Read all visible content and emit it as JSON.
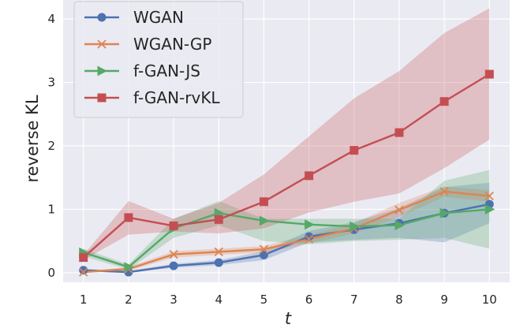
{
  "chart_data": {
    "type": "line",
    "title": "",
    "xlabel": "t",
    "ylabel": "reverse KL",
    "x": [
      1,
      2,
      3,
      4,
      5,
      6,
      7,
      8,
      9,
      10
    ],
    "xticks": [
      "1",
      "2",
      "3",
      "4",
      "5",
      "6",
      "7",
      "8",
      "9",
      "10"
    ],
    "yticks": [
      "0",
      "1",
      "2",
      "3",
      "4"
    ],
    "xlim": [
      0.55,
      10.45
    ],
    "ylim": [
      -0.15,
      4.3
    ],
    "grid": true,
    "legend_position": "top-left",
    "series": [
      {
        "name": "WGAN",
        "color": "#4c72b0",
        "marker": "circle",
        "values": [
          0.04,
          0.01,
          0.11,
          0.16,
          0.28,
          0.57,
          0.68,
          0.78,
          0.94,
          1.08
        ],
        "lower": [
          0.02,
          0.0,
          0.08,
          0.12,
          0.2,
          0.48,
          0.52,
          0.55,
          0.48,
          0.78
        ],
        "upper": [
          0.06,
          0.03,
          0.14,
          0.2,
          0.34,
          0.66,
          0.8,
          1.02,
          1.35,
          1.42
        ]
      },
      {
        "name": "WGAN-GP",
        "color": "#dd8452",
        "marker": "x",
        "values": [
          0.01,
          0.06,
          0.29,
          0.33,
          0.37,
          0.53,
          0.7,
          0.99,
          1.28,
          1.21
        ],
        "lower": [
          0.0,
          0.03,
          0.24,
          0.28,
          0.32,
          0.46,
          0.62,
          0.88,
          1.2,
          1.12
        ],
        "upper": [
          0.02,
          0.09,
          0.34,
          0.38,
          0.42,
          0.6,
          0.78,
          1.1,
          1.36,
          1.3
        ]
      },
      {
        "name": "f-GAN-JS",
        "color": "#55a868",
        "marker": "triangle-right",
        "values": [
          0.32,
          0.09,
          0.7,
          0.94,
          0.82,
          0.76,
          0.73,
          0.75,
          0.94,
          1.0
        ],
        "lower": [
          0.26,
          0.05,
          0.55,
          0.75,
          0.5,
          0.45,
          0.5,
          0.52,
          0.55,
          0.38
        ],
        "upper": [
          0.38,
          0.13,
          0.85,
          1.13,
          0.85,
          0.85,
          0.85,
          0.85,
          1.45,
          1.62
        ]
      },
      {
        "name": "f-GAN-rvKL",
        "color": "#c44e52",
        "marker": "square",
        "values": [
          0.24,
          0.87,
          0.74,
          0.84,
          1.12,
          1.53,
          1.93,
          2.21,
          2.7,
          3.13
        ],
        "lower": [
          0.2,
          0.6,
          0.65,
          0.62,
          0.7,
          0.95,
          1.12,
          1.25,
          1.65,
          2.1
        ],
        "upper": [
          0.28,
          1.13,
          0.85,
          1.1,
          1.55,
          2.15,
          2.75,
          3.18,
          3.78,
          4.17
        ]
      }
    ]
  }
}
